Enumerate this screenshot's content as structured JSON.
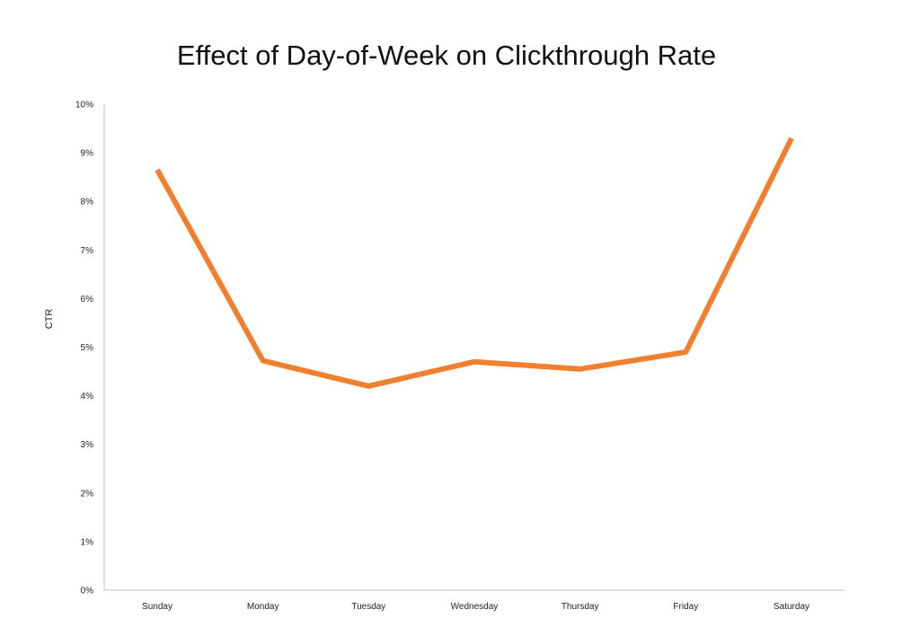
{
  "chart_data": {
    "type": "line",
    "title": "Effect of Day-of-Week on Clickthrough Rate",
    "xlabel": "",
    "ylabel": "CTR",
    "categories": [
      "Sunday",
      "Monday",
      "Tuesday",
      "Wednesday",
      "Thursday",
      "Friday",
      "Saturday"
    ],
    "series": [
      {
        "values": [
          8.65,
          4.72,
          4.2,
          4.7,
          4.55,
          4.9,
          9.3
        ]
      }
    ],
    "ylim": [
      0,
      10
    ],
    "yticks": [
      "0%",
      "1%",
      "2%",
      "3%",
      "4%",
      "5%",
      "6%",
      "7%",
      "8%",
      "9%",
      "10%"
    ],
    "grid": false,
    "legend": "none",
    "colors": {
      "line": "#F08030",
      "axis": "#BFBFBF"
    }
  }
}
